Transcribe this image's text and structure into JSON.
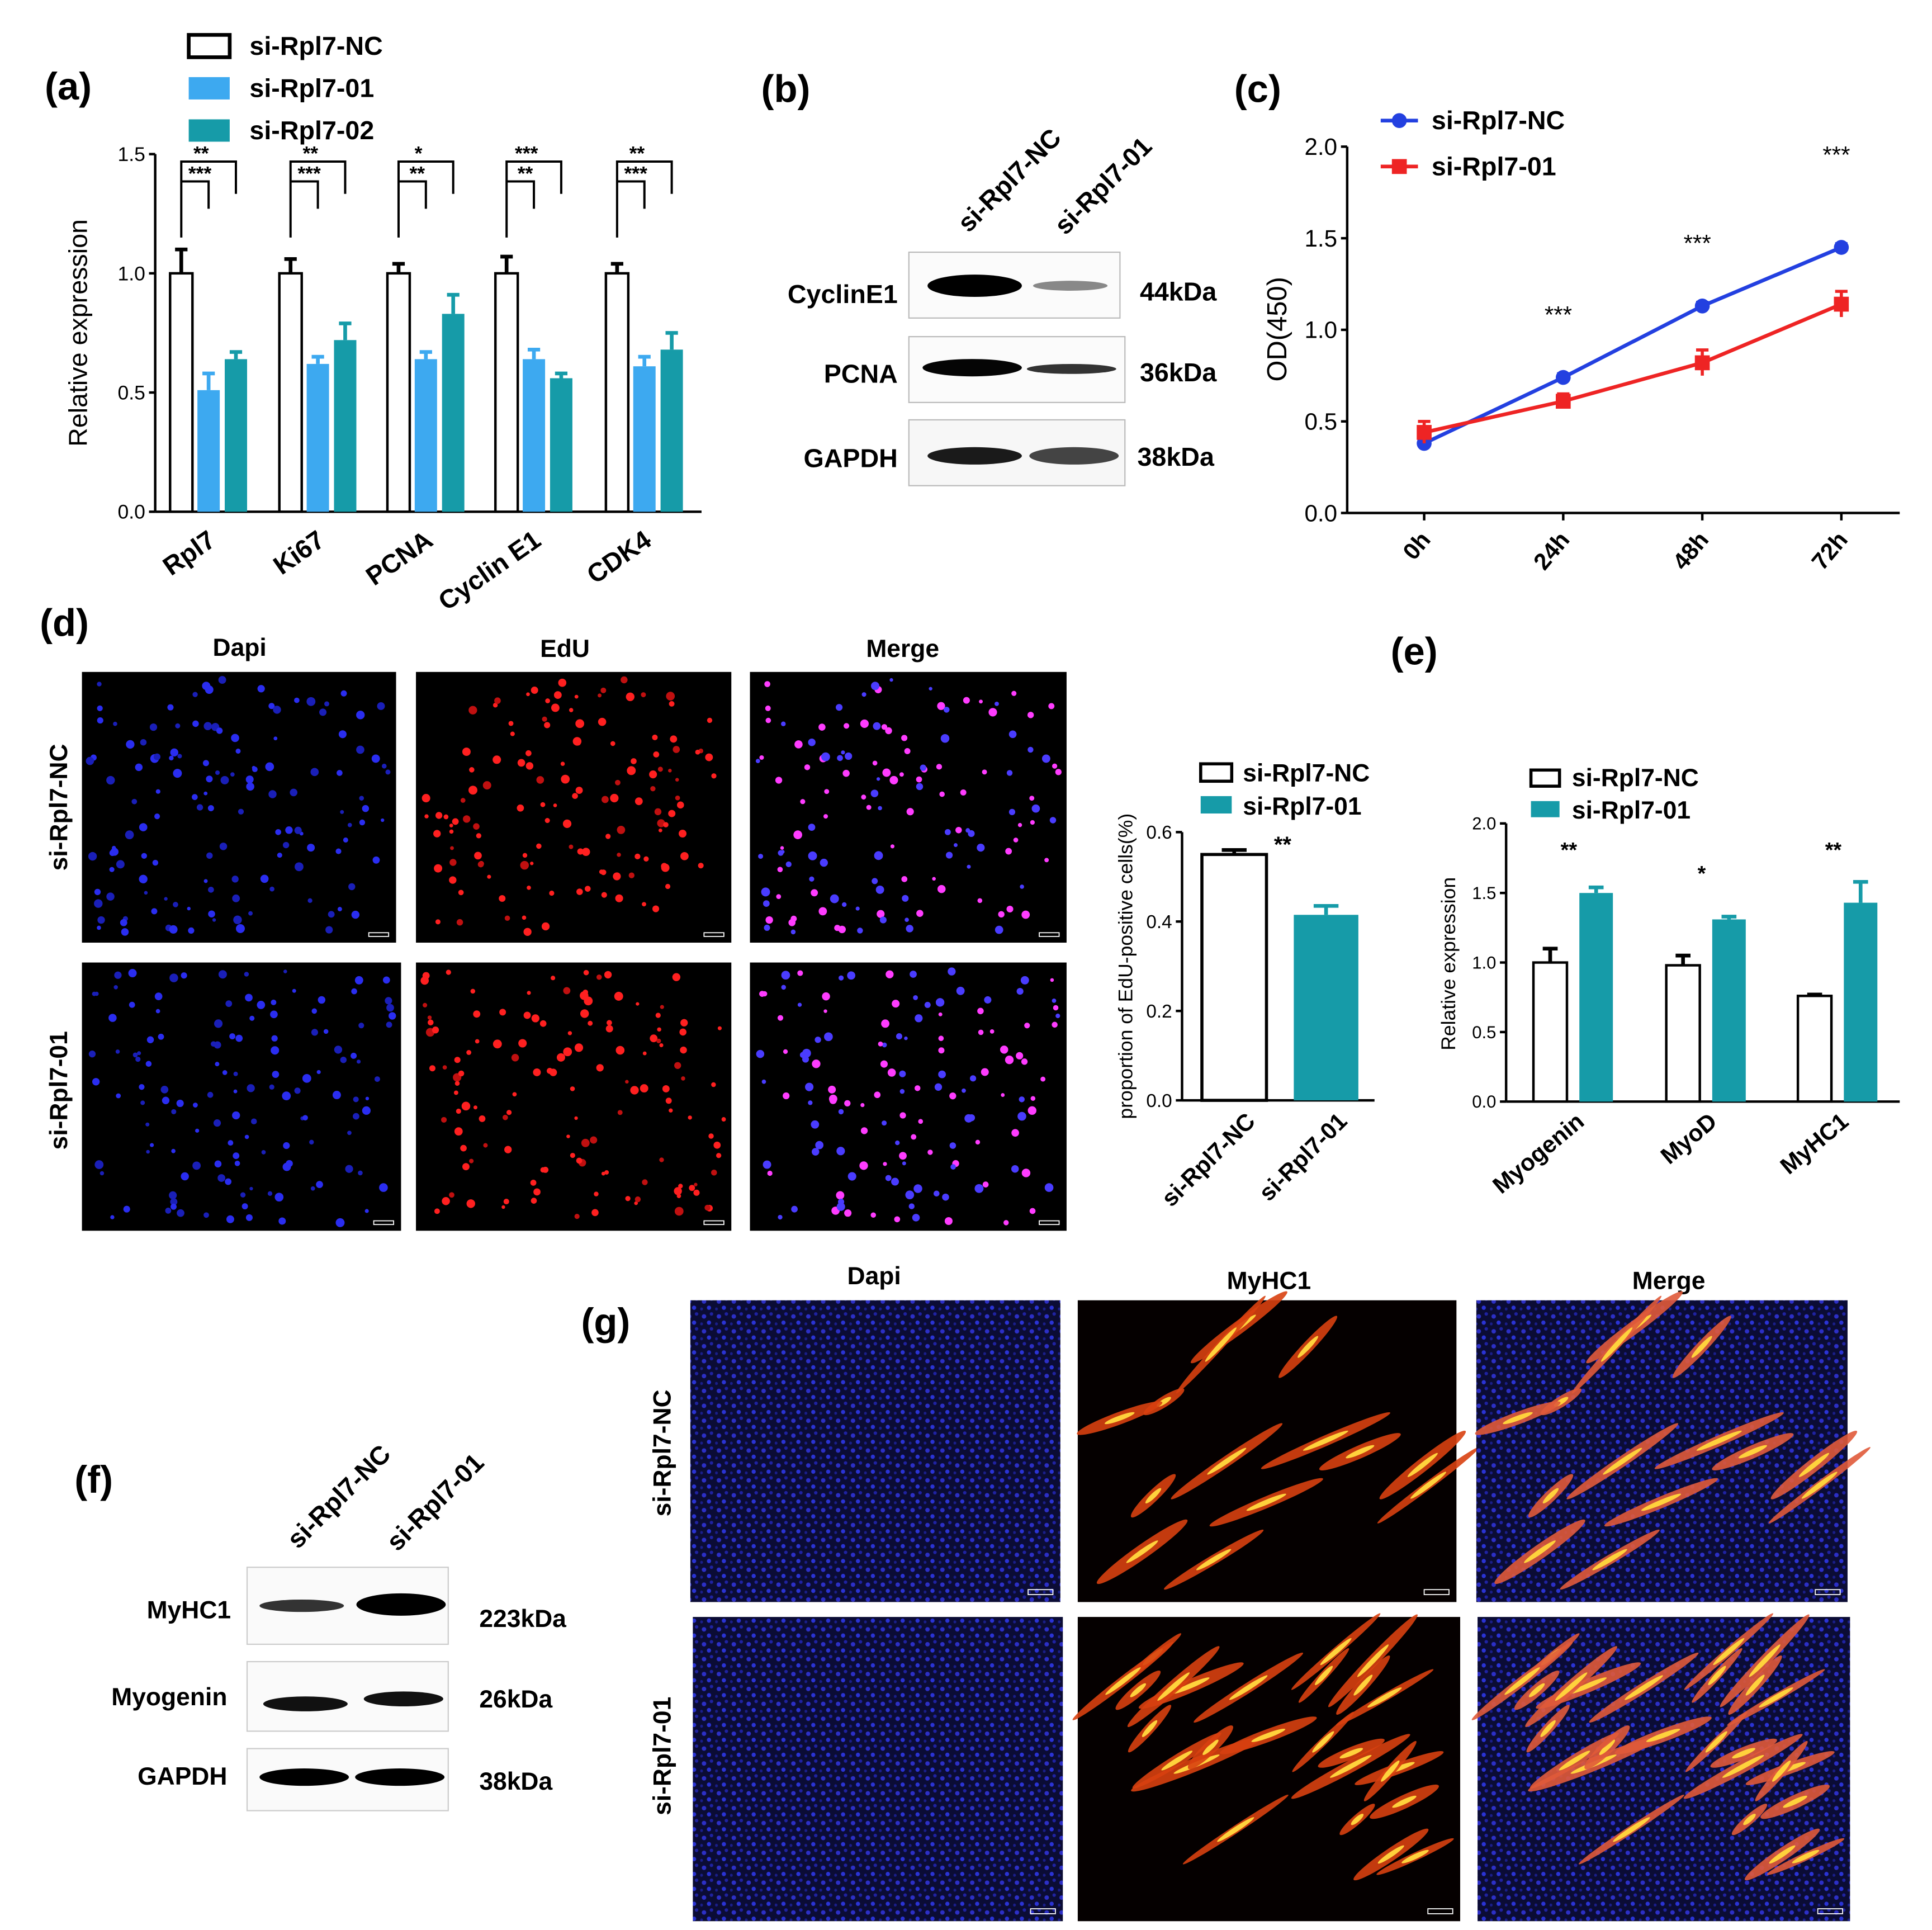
{
  "colors": {
    "nc_fill": "#ffffff",
    "sirna01": "#3da9f0",
    "sirna02": "#169ba8",
    "teal": "#169ba8",
    "blue_line": "#2340e0",
    "red_line": "#ee2424",
    "black": "#000000"
  },
  "panels": {
    "a": {
      "label": "(a)"
    },
    "b": {
      "label": "(b)",
      "lanes": [
        "si-Rpl7-NC",
        "si-Rpl7-01"
      ],
      "rows": [
        {
          "name": "CyclinE1",
          "size": "44kDa"
        },
        {
          "name": "PCNA",
          "size": "36kDa"
        },
        {
          "name": "GAPDH",
          "size": "38kDa"
        }
      ]
    },
    "c": {
      "label": "(c)"
    },
    "d": {
      "label": "(d)",
      "columns": [
        "Dapi",
        "EdU",
        "Merge"
      ],
      "rows": [
        "si-Rpl7-NC",
        "si-Rpl7-01"
      ]
    },
    "e": {
      "label": "(e)"
    },
    "f": {
      "label": "(f)",
      "lanes": [
        "si-Rpl7-NC",
        "si-Rpl7-01"
      ],
      "rows": [
        {
          "name": "MyHC1",
          "size": "223kDa"
        },
        {
          "name": "Myogenin",
          "size": "26kDa"
        },
        {
          "name": "GAPDH",
          "size": "38kDa"
        }
      ]
    },
    "g": {
      "label": "(g)",
      "columns": [
        "Dapi",
        "MyHC1",
        "Merge"
      ],
      "rows": [
        "si-Rpl7-NC",
        "si-Rpl7-01"
      ]
    }
  },
  "chart_data": [
    {
      "id": "a",
      "type": "bar",
      "ylabel": "Relative expression",
      "ylim": [
        0,
        1.5
      ],
      "yticks": [
        "0.0",
        "0.5",
        "1.0",
        "1.5"
      ],
      "categories": [
        "Rpl7",
        "Ki67",
        "PCNA",
        "Cyclin E1",
        "CDK4"
      ],
      "series": [
        {
          "name": "si-Rpl7-NC",
          "values": [
            1.0,
            1.0,
            1.0,
            1.0,
            1.0
          ],
          "errors": [
            0.1,
            0.06,
            0.04,
            0.07,
            0.04
          ]
        },
        {
          "name": "si-Rpl7-01",
          "values": [
            0.51,
            0.62,
            0.64,
            0.64,
            0.61
          ],
          "errors": [
            0.07,
            0.03,
            0.03,
            0.04,
            0.04
          ]
        },
        {
          "name": "si-Rpl7-02",
          "values": [
            0.64,
            0.72,
            0.83,
            0.56,
            0.68
          ],
          "errors": [
            0.03,
            0.07,
            0.08,
            0.02,
            0.07
          ]
        }
      ],
      "significance": [
        {
          "category": "Rpl7",
          "marks": [
            "**",
            "***"
          ]
        },
        {
          "category": "Ki67",
          "marks": [
            "**",
            "***"
          ]
        },
        {
          "category": "PCNA",
          "marks": [
            "*",
            "**"
          ]
        },
        {
          "category": "Cyclin E1",
          "marks": [
            "***",
            "**"
          ]
        },
        {
          "category": "CDK4",
          "marks": [
            "**",
            "***"
          ]
        }
      ]
    },
    {
      "id": "c",
      "type": "line",
      "ylabel": "OD(450)",
      "ylim": [
        0,
        2.0
      ],
      "yticks": [
        "0.0",
        "0.5",
        "1.0",
        "1.5",
        "2.0"
      ],
      "x": [
        "0h",
        "24h",
        "48h",
        "72h"
      ],
      "series": [
        {
          "name": "si-Rpl7-NC",
          "values": [
            0.38,
            0.74,
            1.13,
            1.45
          ],
          "errors": [
            0.02,
            0.02,
            0.02,
            0.02
          ]
        },
        {
          "name": "si-Rpl7-01",
          "values": [
            0.44,
            0.61,
            0.82,
            1.14
          ],
          "errors": [
            0.06,
            0.04,
            0.07,
            0.07
          ]
        }
      ],
      "annotations": [
        "",
        "***",
        "***",
        "***"
      ]
    },
    {
      "id": "d",
      "type": "bar",
      "ylabel": "proportion of EdU-positive cells(%)",
      "ylim": [
        0,
        0.6
      ],
      "yticks": [
        "0.0",
        "0.2",
        "0.4",
        "0.6"
      ],
      "categories": [
        "si-Rpl7-NC",
        "si-Rpl7-01"
      ],
      "legend": [
        "si-Rpl7-NC",
        "si-Rpl7-01"
      ],
      "values": [
        0.55,
        0.415
      ],
      "errors": [
        0.01,
        0.02
      ],
      "annotation": "**"
    },
    {
      "id": "e",
      "type": "bar",
      "ylabel": "Relative expression",
      "ylim": [
        0,
        2.0
      ],
      "yticks": [
        "0.0",
        "0.5",
        "1.0",
        "1.5",
        "2.0"
      ],
      "categories": [
        "Myogenin",
        "MyoD",
        "MyHC1"
      ],
      "series": [
        {
          "name": "si-Rpl7-NC",
          "values": [
            1.0,
            0.98,
            0.76
          ],
          "errors": [
            0.1,
            0.07,
            0.01
          ]
        },
        {
          "name": "si-Rpl7-01",
          "values": [
            1.5,
            1.31,
            1.43
          ],
          "errors": [
            0.04,
            0.02,
            0.15
          ]
        }
      ],
      "significance": [
        "**",
        "*",
        "**"
      ]
    }
  ]
}
